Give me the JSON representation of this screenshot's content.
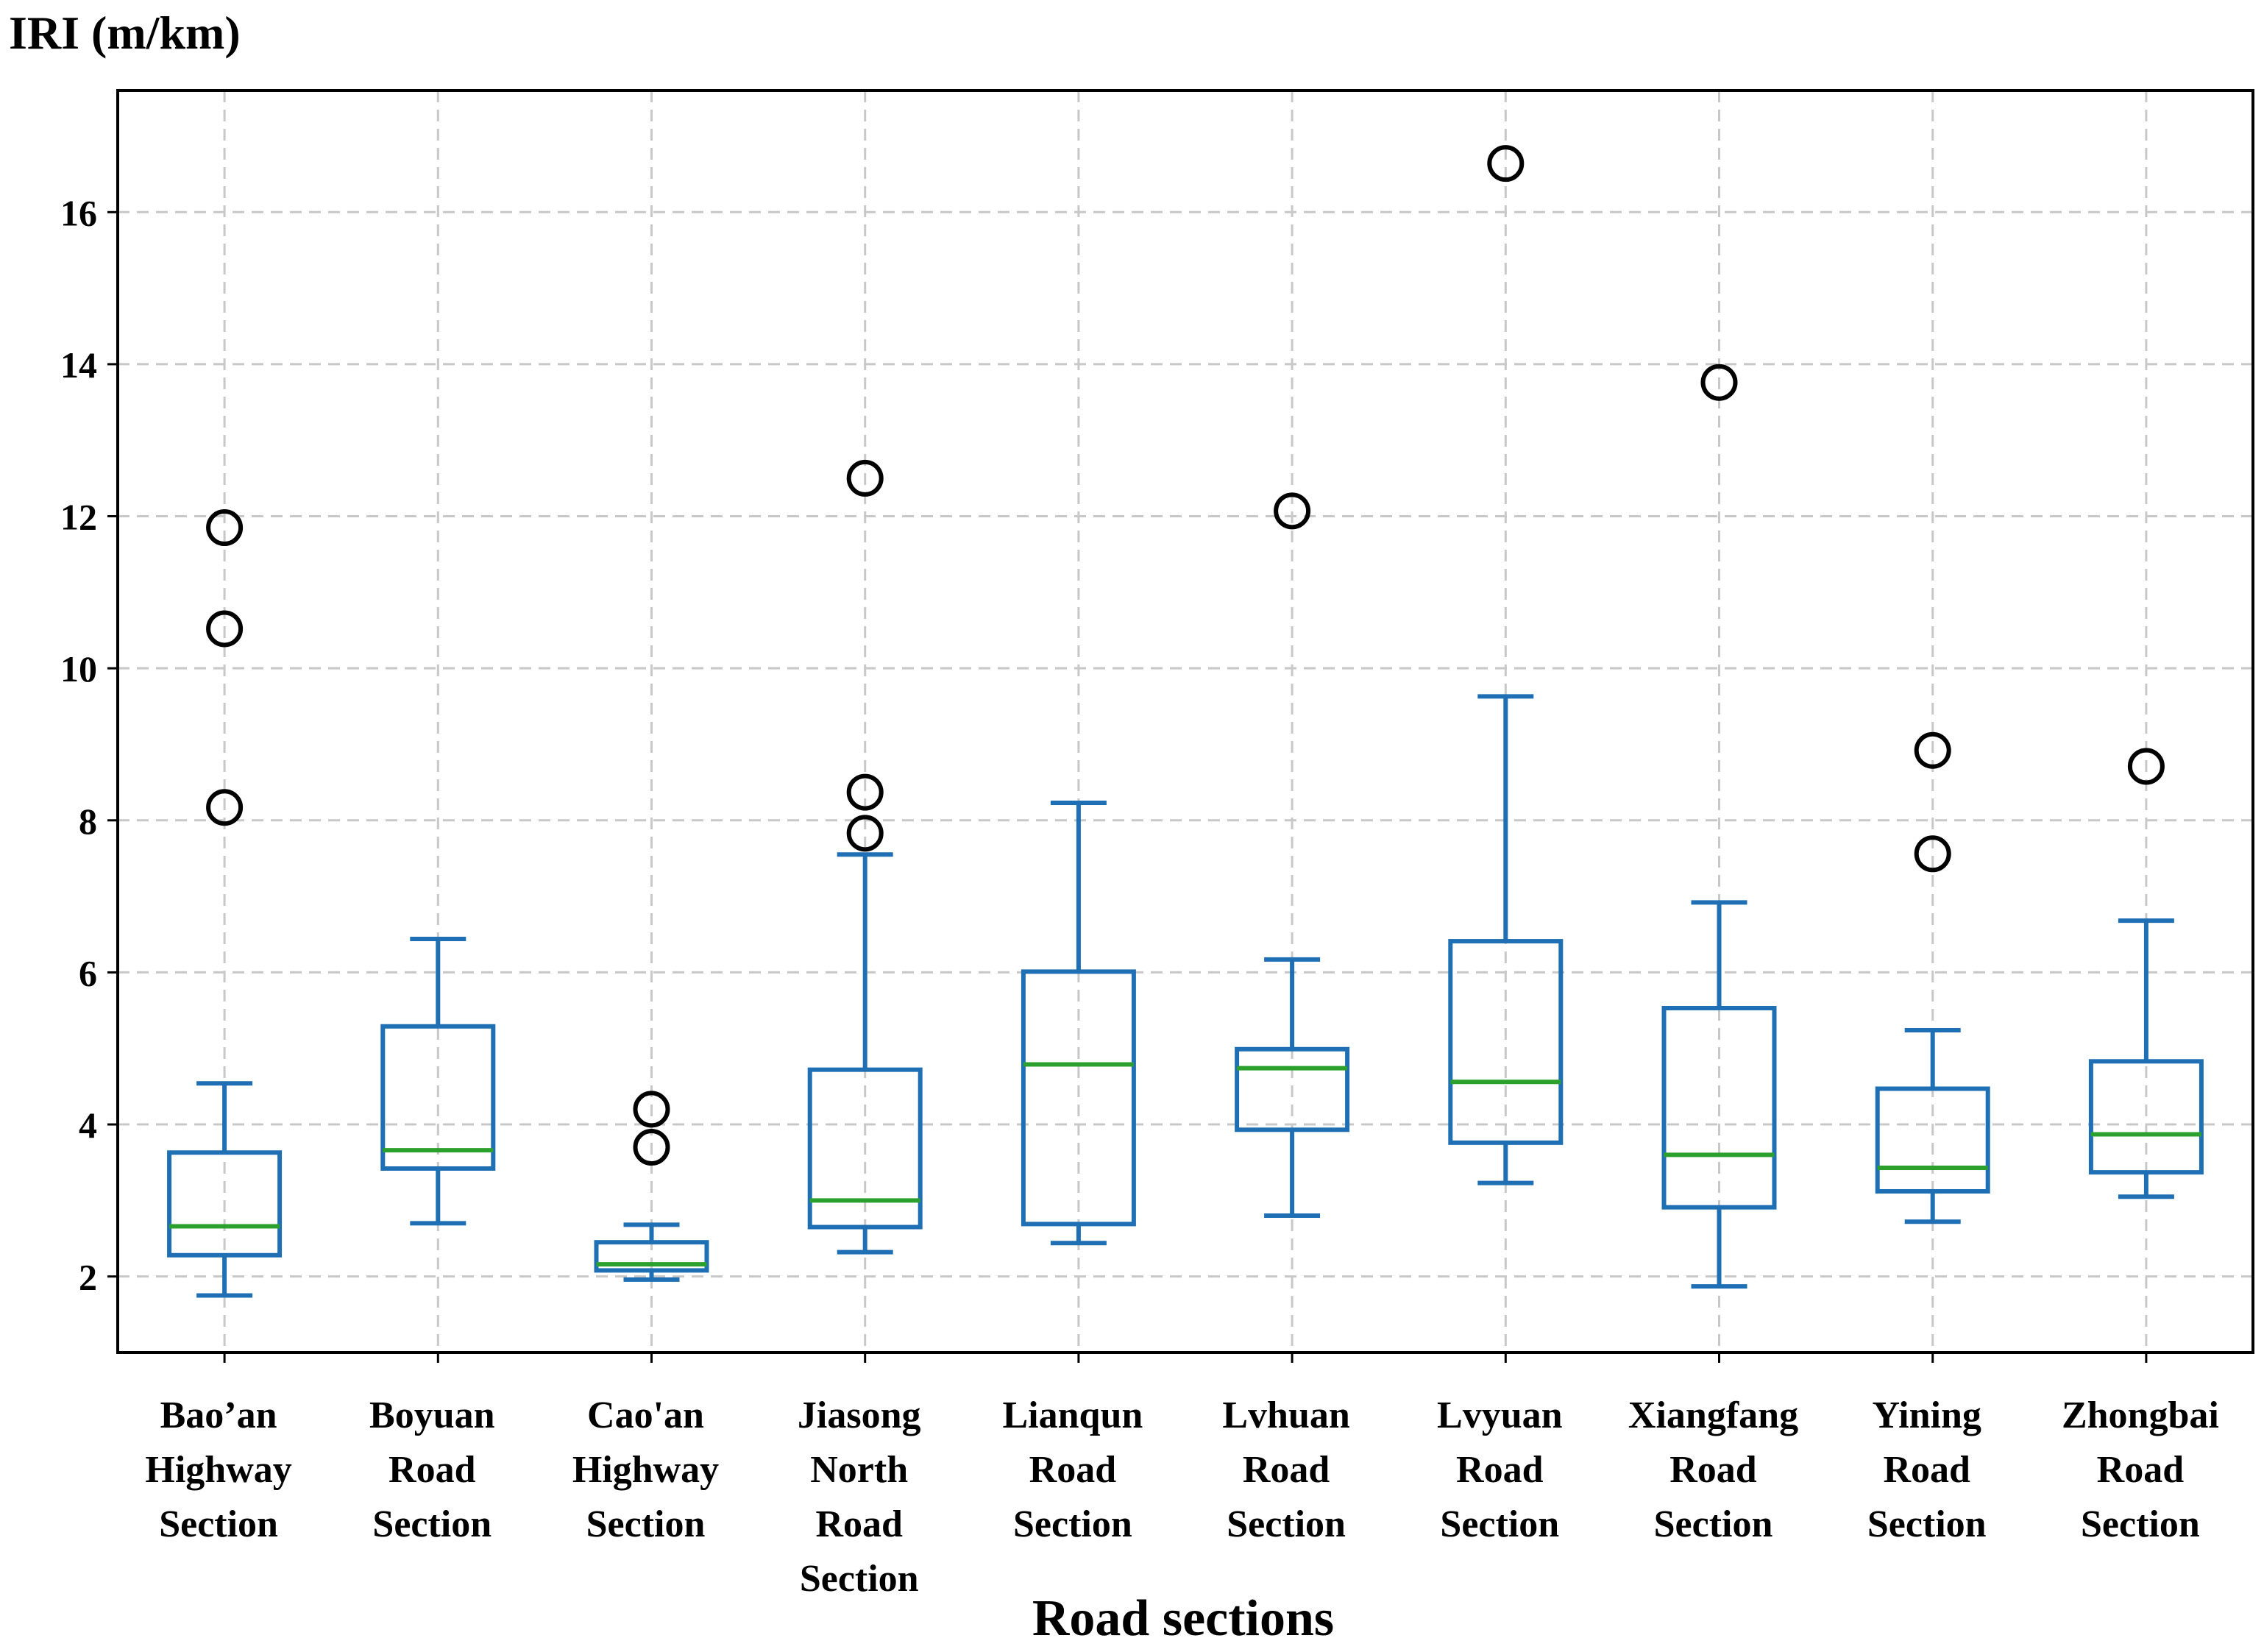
{
  "chart_data": {
    "type": "boxplot",
    "title": "",
    "ylabel": "IRI (m/km)",
    "xlabel": "Road sections",
    "ylim": [
      1.0,
      17.6
    ],
    "yticks": [
      2,
      4,
      6,
      8,
      10,
      12,
      14,
      16
    ],
    "grid": true,
    "colors": {
      "box": "#1f6fb4",
      "median": "#2ca02c",
      "flier": "#000000",
      "grid": "#c8c8c8"
    },
    "categories": [
      {
        "label_lines": [
          "Bao’an",
          "Highway",
          "Section"
        ],
        "whisker_low": 1.75,
        "q1": 2.28,
        "median": 2.66,
        "q3": 3.63,
        "whisker_high": 4.54,
        "outliers": [
          8.17,
          10.52,
          11.85
        ]
      },
      {
        "label_lines": [
          "Boyuan",
          "Road",
          "Section"
        ],
        "whisker_low": 2.7,
        "q1": 3.42,
        "median": 3.66,
        "q3": 5.29,
        "whisker_high": 6.44,
        "outliers": []
      },
      {
        "label_lines": [
          "Cao'an",
          "Highway",
          "Section"
        ],
        "whisker_low": 1.96,
        "q1": 2.08,
        "median": 2.16,
        "q3": 2.45,
        "whisker_high": 2.68,
        "outliers": [
          3.7,
          4.2
        ]
      },
      {
        "label_lines": [
          "Jiasong",
          "North",
          "Road",
          "Section"
        ],
        "whisker_low": 2.32,
        "q1": 2.65,
        "median": 3.0,
        "q3": 4.72,
        "whisker_high": 7.55,
        "outliers": [
          7.83,
          8.37,
          12.5
        ]
      },
      {
        "label_lines": [
          "Lianqun",
          "Road",
          "Section"
        ],
        "whisker_low": 2.44,
        "q1": 2.69,
        "median": 4.79,
        "q3": 6.01,
        "whisker_high": 8.23,
        "outliers": []
      },
      {
        "label_lines": [
          "Lvhuan",
          "Road",
          "Section"
        ],
        "whisker_low": 2.8,
        "q1": 3.93,
        "median": 4.74,
        "q3": 4.99,
        "whisker_high": 6.17,
        "outliers": [
          12.07
        ]
      },
      {
        "label_lines": [
          "Lvyuan",
          "Road",
          "Section"
        ],
        "whisker_low": 3.23,
        "q1": 3.76,
        "median": 4.56,
        "q3": 6.41,
        "whisker_high": 9.63,
        "outliers": [
          16.64
        ]
      },
      {
        "label_lines": [
          "Xiangfang",
          "Road",
          "Section"
        ],
        "whisker_low": 1.87,
        "q1": 2.91,
        "median": 3.6,
        "q3": 5.53,
        "whisker_high": 6.92,
        "outliers": [
          13.76
        ]
      },
      {
        "label_lines": [
          "Yining",
          "Road",
          "Section"
        ],
        "whisker_low": 2.72,
        "q1": 3.12,
        "median": 3.43,
        "q3": 4.47,
        "whisker_high": 5.24,
        "outliers": [
          7.56,
          8.92
        ]
      },
      {
        "label_lines": [
          "Zhongbai",
          "Road",
          "Section"
        ],
        "whisker_low": 3.05,
        "q1": 3.37,
        "median": 3.87,
        "q3": 4.83,
        "whisker_high": 6.68,
        "outliers": [
          8.71
        ]
      }
    ]
  }
}
